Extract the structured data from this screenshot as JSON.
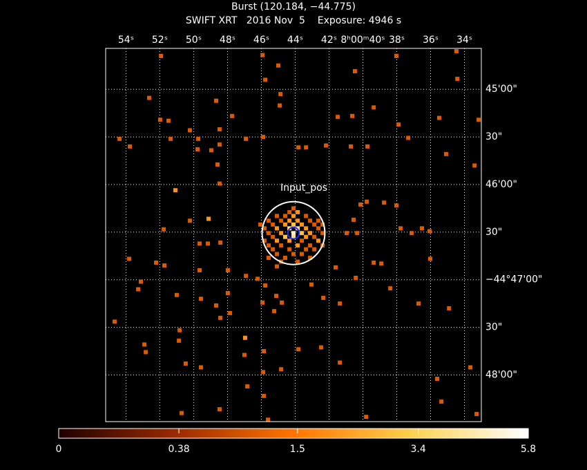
{
  "chart_data": {
    "type": "image",
    "title": "Burst (120.184, −44.775)",
    "subtitle": "SWIFT XRT   2016 Nov  5    Exposure: 4946 s",
    "color_scale": "sqrt",
    "grid": true,
    "xlim": [
      55.2,
      33.0
    ],
    "ylim": [
      48.49,
      44.57
    ],
    "xticks": [
      {
        "value": 54,
        "label": "54ˢ"
      },
      {
        "value": 52,
        "label": "52ˢ"
      },
      {
        "value": 50,
        "label": "50ˢ"
      },
      {
        "value": 48,
        "label": "48ˢ"
      },
      {
        "value": 46,
        "label": "46ˢ"
      },
      {
        "value": 44,
        "label": "44ˢ"
      },
      {
        "value": 42,
        "label": "42ˢ"
      },
      {
        "value": 40,
        "label": "8ʰ00ᵐ40ˢ"
      },
      {
        "value": 38,
        "label": "38ˢ"
      },
      {
        "value": 36,
        "label": "36ˢ"
      },
      {
        "value": 34,
        "label": "34ˢ"
      }
    ],
    "yticks": [
      {
        "value": 45,
        "label": "45'00\""
      },
      {
        "value": 45.5,
        "label": "30\""
      },
      {
        "value": 46,
        "label": "46'00\""
      },
      {
        "value": 46.5,
        "label": "30\""
      },
      {
        "value": 47,
        "label": "−44°47'00\""
      },
      {
        "value": 47.5,
        "label": "30\""
      },
      {
        "value": 48,
        "label": "48'00\""
      }
    ],
    "clim": [
      0,
      5.8
    ],
    "cticks": [
      0,
      0.38,
      1.5,
      3.4,
      5.8
    ],
    "regions": [
      {
        "label": "Input_pos",
        "x": 44.1,
        "y": 46.51,
        "radius": 0.33,
        "color": "#ffffff"
      },
      {
        "x": 44.1,
        "y": 46.51,
        "radius": 0.06,
        "color": "#2030ff"
      }
    ],
    "x": [
      51.93,
      45.93,
      45.0,
      40.47,
      38.02,
      34.47,
      34.42,
      45.77,
      52.63,
      48.67,
      44.87,
      44.91,
      39.36,
      41.49,
      40.63,
      37.89,
      35.49,
      33.16,
      51.98,
      51.49,
      50.22,
      48.47,
      47.73,
      54.38,
      53.77,
      51.36,
      49.73,
      49.77,
      48.96,
      48.47,
      46.91,
      45.89,
      43.81,
      43.36,
      42.18,
      40.71,
      39.73,
      37.32,
      35.08,
      33.4,
      48.59,
      48.47,
      51.08,
      51.77,
      49.12,
      50.22,
      39.77,
      38.75,
      38.02,
      37.77,
      36.51,
      37.12,
      36.06,
      49.65,
      49.16,
      48.42,
      53.81,
      52.22,
      51.73,
      49.65,
      47.98,
      46.91,
      46.22,
      53.12,
      53.28,
      51.0,
      49.57,
      48.67,
      47.98,
      48.42,
      47.85,
      54.67,
      50.83,
      50.87,
      52.91,
      52.83,
      50.47,
      49.57,
      46.96,
      47.0,
      45.85,
      45.89,
      46.83,
      45.85,
      44.83,
      43.81,
      42.47,
      42.34,
      41.36,
      41.36,
      38.38,
      36.71,
      34.91,
      36.02,
      33.65,
      33.28,
      35.61,
      35.36,
      39.81,
      45.61,
      50.71,
      48.47,
      41.61,
      40.42,
      39.36,
      38.91,
      40.14,
      40.55,
      40.34,
      40.96,
      45.77,
      45.93,
      45.12,
      44.79,
      45.24,
      43.04,
      44.1,
      44.34,
      43.85,
      45.08,
      44.59,
      44.1,
      43.36,
      45.57,
      44.83,
      44.34,
      43.85,
      43.12,
      42.63,
      46.06,
      45.32,
      44.59,
      44.1,
      43.61,
      42.87,
      42.38,
      45.81,
      45.08,
      44.34,
      43.85,
      43.36,
      42.63,
      45.57,
      44.83,
      44.1,
      43.61,
      43.12,
      42.38,
      45.32,
      44.59,
      44.1,
      43.36,
      42.87,
      45.81,
      45.08,
      44.34,
      43.61,
      42.63,
      45.57,
      44.83,
      43.85,
      43.12,
      42.38,
      45.32,
      44.34,
      43.36,
      42.87,
      45.08,
      44.1,
      43.61,
      45.57,
      44.59,
      43.12,
      44.83,
      43.85,
      45.08
    ],
    "y": [
      44.65,
      44.64,
      44.75,
      44.81,
      44.65,
      44.6,
      44.89,
      44.9,
      45.09,
      45.12,
      45.05,
      45.17,
      45.19,
      45.29,
      45.28,
      45.37,
      45.3,
      45.32,
      45.32,
      45.33,
      45.43,
      45.42,
      45.28,
      45.52,
      45.6,
      45.52,
      45.52,
      45.63,
      45.64,
      45.58,
      45.52,
      45.5,
      45.61,
      45.61,
      45.59,
      45.6,
      45.6,
      45.51,
      45.68,
      45.8,
      45.79,
      45.99,
      46.06,
      46.47,
      46.36,
      46.38,
      46.18,
      46.19,
      46.22,
      46.46,
      46.46,
      46.51,
      46.49,
      46.62,
      46.62,
      46.61,
      46.78,
      46.82,
      46.85,
      46.9,
      46.9,
      46.96,
      46.99,
      47.02,
      47.1,
      47.16,
      47.2,
      47.27,
      47.14,
      47.4,
      47.35,
      47.44,
      47.53,
      47.64,
      47.68,
      47.76,
      47.88,
      47.92,
      47.61,
      47.79,
      47.75,
      47.97,
      48.12,
      48.22,
      47.94,
      47.73,
      47.71,
      47.19,
      47.25,
      47.87,
      47.09,
      47.25,
      47.3,
      46.78,
      47.92,
      48.41,
      48.04,
      48.28,
      48.44,
      48.47,
      48.4,
      48.36,
      46.87,
      46.98,
      46.82,
      46.83,
      46.21,
      46.37,
      46.51,
      46.51,
      47.06,
      47.24,
      47.17,
      47.24,
      47.33,
      47.05,
      46.25,
      46.29,
      46.29,
      46.33,
      46.33,
      46.33,
      46.33,
      46.38,
      46.38,
      46.38,
      46.38,
      46.38,
      46.38,
      46.42,
      46.42,
      46.42,
      46.42,
      46.42,
      46.42,
      46.42,
      46.46,
      46.46,
      46.46,
      46.46,
      46.46,
      46.46,
      46.51,
      46.51,
      46.51,
      46.51,
      46.51,
      46.51,
      46.55,
      46.55,
      46.55,
      46.55,
      46.55,
      46.59,
      46.59,
      46.59,
      46.59,
      46.59,
      46.64,
      46.64,
      46.64,
      46.64,
      46.64,
      46.68,
      46.68,
      46.68,
      46.68,
      46.73,
      46.73,
      46.73,
      46.77,
      46.77,
      46.77,
      46.81,
      46.81,
      46.86
    ],
    "values": [
      1,
      1,
      1,
      1,
      1,
      1,
      1,
      1,
      1,
      1,
      1,
      1,
      1,
      1,
      1,
      1,
      1,
      1,
      1,
      1,
      1,
      1,
      1,
      1,
      1,
      1,
      1,
      1,
      1,
      1,
      1,
      1,
      1,
      1,
      1,
      1,
      1,
      1,
      1,
      1,
      1,
      1,
      2,
      1,
      2,
      1,
      1,
      1,
      1,
      1,
      1,
      1,
      1,
      1,
      1,
      1,
      1,
      1,
      1,
      1,
      1,
      1,
      1,
      1,
      1,
      1,
      1,
      1,
      1,
      1,
      1,
      1,
      1,
      1,
      1,
      1,
      1,
      1,
      2,
      1,
      1,
      1,
      1,
      1,
      1,
      1,
      1,
      1,
      1,
      1,
      1,
      1,
      1,
      1,
      1,
      1,
      1,
      1,
      1,
      1,
      1,
      1,
      1,
      1,
      1,
      1,
      1,
      1,
      1,
      1,
      1,
      1,
      1,
      1,
      1,
      1,
      1,
      1,
      2,
      1,
      1,
      2,
      1,
      1,
      1,
      2,
      2,
      1,
      1,
      1,
      1,
      2,
      3,
      2,
      1,
      1,
      1,
      2,
      4,
      4,
      2,
      1,
      1,
      2,
      5,
      3,
      2,
      1,
      1,
      3,
      4,
      2,
      1,
      1,
      2,
      2,
      1,
      2,
      1,
      1,
      2,
      1,
      1,
      1,
      1,
      1,
      1,
      1,
      1,
      1,
      1,
      1,
      1,
      1,
      1,
      1
    ]
  }
}
